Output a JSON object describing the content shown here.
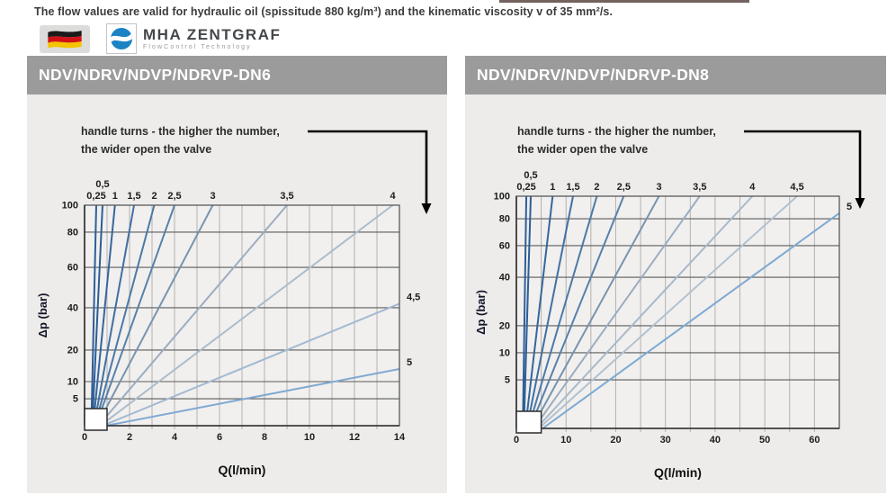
{
  "page": {
    "note": "The flow values are valid for hydraulic oil (spissitude 880 kg/m³) and the kinematic viscosity v of 35 mm²/s.",
    "brand": {
      "name": "MHA ZENTGRAF",
      "tagline": "FlowControl Technology",
      "icon_color": "#1b82c5",
      "flag_colors": [
        "#1a1a1a",
        "#d01217",
        "#f5c400"
      ]
    }
  },
  "panels": [
    {
      "title": "NDV/NDRV/NDVP/NDRVP-DN6",
      "annotation_line1": "handle turns - the higher the number,",
      "annotation_line2": "the wider open the valve"
    },
    {
      "title": "NDV/NDRV/NDVP/NDRVP-DN8",
      "annotation_line1": "handle turns - the higher the number,",
      "annotation_line2": "the wider open the valve"
    }
  ],
  "chart_data": [
    {
      "type": "line",
      "title": "NDV/NDRV/NDVP/NDRVP-DN6",
      "xlabel": "Q(l/min)",
      "ylabel": "Δp (bar)",
      "xlim": [
        0,
        14
      ],
      "x_major_ticks": [
        0,
        2,
        4,
        6,
        8,
        10,
        12,
        14
      ],
      "x_minor_step": 1,
      "y_ticks": [
        100,
        80,
        60,
        40,
        20,
        10,
        5
      ],
      "y_scale_anchors": [
        [
          0,
          1.0
        ],
        [
          5,
          0.878
        ],
        [
          10,
          0.8
        ],
        [
          20,
          0.657
        ],
        [
          40,
          0.465
        ],
        [
          60,
          0.282
        ],
        [
          80,
          0.122
        ],
        [
          100,
          0.0
        ]
      ],
      "legend_note": "curve labels = handle turns",
      "grid": true,
      "origin_box": {
        "x0": 0,
        "x1": 1
      },
      "series": [
        {
          "name": "0,25",
          "x0": 0.3,
          "y0": 0,
          "x1": 0.52,
          "y1": 100,
          "label_side": "top",
          "label_row": 1,
          "color": "#2d5e97"
        },
        {
          "name": "0,5",
          "x0": 0.34,
          "y0": 0,
          "x1": 0.8,
          "y1": 100,
          "label_side": "top",
          "label_row": 2,
          "color": "#2d5e97"
        },
        {
          "name": "1",
          "x0": 0.38,
          "y0": 0,
          "x1": 1.35,
          "y1": 100,
          "label_side": "top",
          "label_row": 1,
          "color": "#36669d"
        },
        {
          "name": "1,5",
          "x0": 0.42,
          "y0": 0,
          "x1": 2.2,
          "y1": 100,
          "label_side": "top",
          "label_row": 1,
          "color": "#4070a3"
        },
        {
          "name": "2",
          "x0": 0.46,
          "y0": 0,
          "x1": 3.1,
          "y1": 100,
          "label_side": "top",
          "label_row": 1,
          "color": "#4b79a8"
        },
        {
          "name": "2,5",
          "x0": 0.5,
          "y0": 0,
          "x1": 4.0,
          "y1": 100,
          "label_side": "top",
          "label_row": 1,
          "color": "#5881ab"
        },
        {
          "name": "3",
          "x0": 0.55,
          "y0": 0,
          "x1": 5.7,
          "y1": 100,
          "label_side": "top",
          "label_row": 1,
          "color": "#7794b0"
        },
        {
          "name": "3,5",
          "x0": 0.62,
          "y0": 0,
          "x1": 9.0,
          "y1": 100,
          "label_side": "top",
          "label_row": 1,
          "color": "#9cadc0"
        },
        {
          "name": "4",
          "x0": 0.7,
          "y0": 0,
          "x1": 13.7,
          "y1": 100,
          "label_side": "top",
          "label_row": 1,
          "color": "#adbccb"
        },
        {
          "name": "4,5",
          "x0": 0.8,
          "y0": 0,
          "x1": 14,
          "y1": 42,
          "label_side": "right",
          "label_row": 1,
          "color": "#a2b9d2"
        },
        {
          "name": "5",
          "x0": 0.95,
          "y0": 0,
          "x1": 14,
          "y1": 14,
          "label_side": "right",
          "label_row": 1,
          "color": "#7fa9d2"
        }
      ]
    },
    {
      "type": "line",
      "title": "NDV/NDRV/NDVP/NDRVP-DN8",
      "xlabel": "Q(l/min)",
      "ylabel": "Δp (bar)",
      "xlim": [
        0,
        65
      ],
      "x_major_ticks": [
        0,
        10,
        20,
        30,
        40,
        50,
        60
      ],
      "x_minor_step": 5,
      "y_ticks": [
        100,
        80,
        60,
        40,
        20,
        10,
        5
      ],
      "y_scale_anchors": [
        [
          0,
          1.0
        ],
        [
          5,
          0.791
        ],
        [
          10,
          0.674
        ],
        [
          20,
          0.558
        ],
        [
          40,
          0.349
        ],
        [
          60,
          0.213
        ],
        [
          80,
          0.097
        ],
        [
          100,
          0.0
        ]
      ],
      "legend_note": "curve labels = handle turns",
      "grid": true,
      "origin_box": {
        "x0": 0,
        "x1": 5
      },
      "series": [
        {
          "name": "0,25",
          "x0": 1.3,
          "y0": 0,
          "x1": 2.0,
          "y1": 100,
          "label_side": "top",
          "label_row": 1,
          "color": "#2d5e97"
        },
        {
          "name": "0,5",
          "x0": 1.5,
          "y0": 0,
          "x1": 2.9,
          "y1": 100,
          "label_side": "top",
          "label_row": 2,
          "color": "#2d5e97"
        },
        {
          "name": "1",
          "x0": 1.8,
          "y0": 0,
          "x1": 7.3,
          "y1": 100,
          "label_side": "top",
          "label_row": 1,
          "color": "#36669d"
        },
        {
          "name": "1,5",
          "x0": 2.1,
          "y0": 0,
          "x1": 11.4,
          "y1": 100,
          "label_side": "top",
          "label_row": 1,
          "color": "#4070a3"
        },
        {
          "name": "2",
          "x0": 2.4,
          "y0": 0,
          "x1": 16.2,
          "y1": 100,
          "label_side": "top",
          "label_row": 1,
          "color": "#4b79a8"
        },
        {
          "name": "2,5",
          "x0": 2.7,
          "y0": 0,
          "x1": 21.6,
          "y1": 100,
          "label_side": "top",
          "label_row": 1,
          "color": "#5881ab"
        },
        {
          "name": "3",
          "x0": 3.1,
          "y0": 0,
          "x1": 28.7,
          "y1": 100,
          "label_side": "top",
          "label_row": 1,
          "color": "#7794b0"
        },
        {
          "name": "3,5",
          "x0": 3.5,
          "y0": 0,
          "x1": 36.9,
          "y1": 100,
          "label_side": "top",
          "label_row": 1,
          "color": "#9cadc0"
        },
        {
          "name": "4",
          "x0": 4.0,
          "y0": 0,
          "x1": 47.5,
          "y1": 100,
          "label_side": "top",
          "label_row": 1,
          "color": "#a9b9ca"
        },
        {
          "name": "4,5",
          "x0": 4.5,
          "y0": 0,
          "x1": 56.5,
          "y1": 100,
          "label_side": "top",
          "label_row": 1,
          "color": "#b3c1cf"
        },
        {
          "name": "5",
          "x0": 5.3,
          "y0": 0,
          "x1": 65,
          "y1": 85,
          "label_side": "right",
          "label_row": 1,
          "color": "#7fa9d2"
        }
      ]
    }
  ]
}
